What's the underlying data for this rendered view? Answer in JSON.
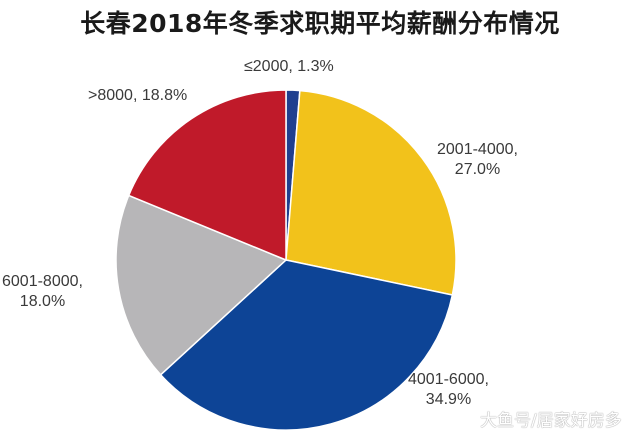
{
  "title": "长春2018年冬季求职期平均薪酬分布情况",
  "watermark": "大鱼号/居家好房多",
  "chart_data": {
    "type": "pie",
    "title": "长春2018年冬季求职期平均薪酬分布情况",
    "start_angle": "12 o'clock, clockwise",
    "categories": [
      "≤2000",
      "2001-4000",
      "4001-6000",
      "6001-8000",
      ">8000"
    ],
    "values": [
      1.3,
      27.0,
      34.9,
      18.0,
      18.8
    ],
    "unit": "%",
    "colors": [
      "#1f3f8f",
      "#f2c21b",
      "#0d4496",
      "#b7b6b8",
      "#c01a2a"
    ],
    "labels": [
      {
        "line1": "≤2000, 1.3%",
        "line2": ""
      },
      {
        "line1": "2001-4000,",
        "line2": "27.0%"
      },
      {
        "line1": "4001-6000,",
        "line2": "34.9%"
      },
      {
        "line1": "6001-8000,",
        "line2": "18.0%"
      },
      {
        "line1": ">8000, 18.8%",
        "line2": ""
      }
    ],
    "legend": "none (data labels)"
  }
}
